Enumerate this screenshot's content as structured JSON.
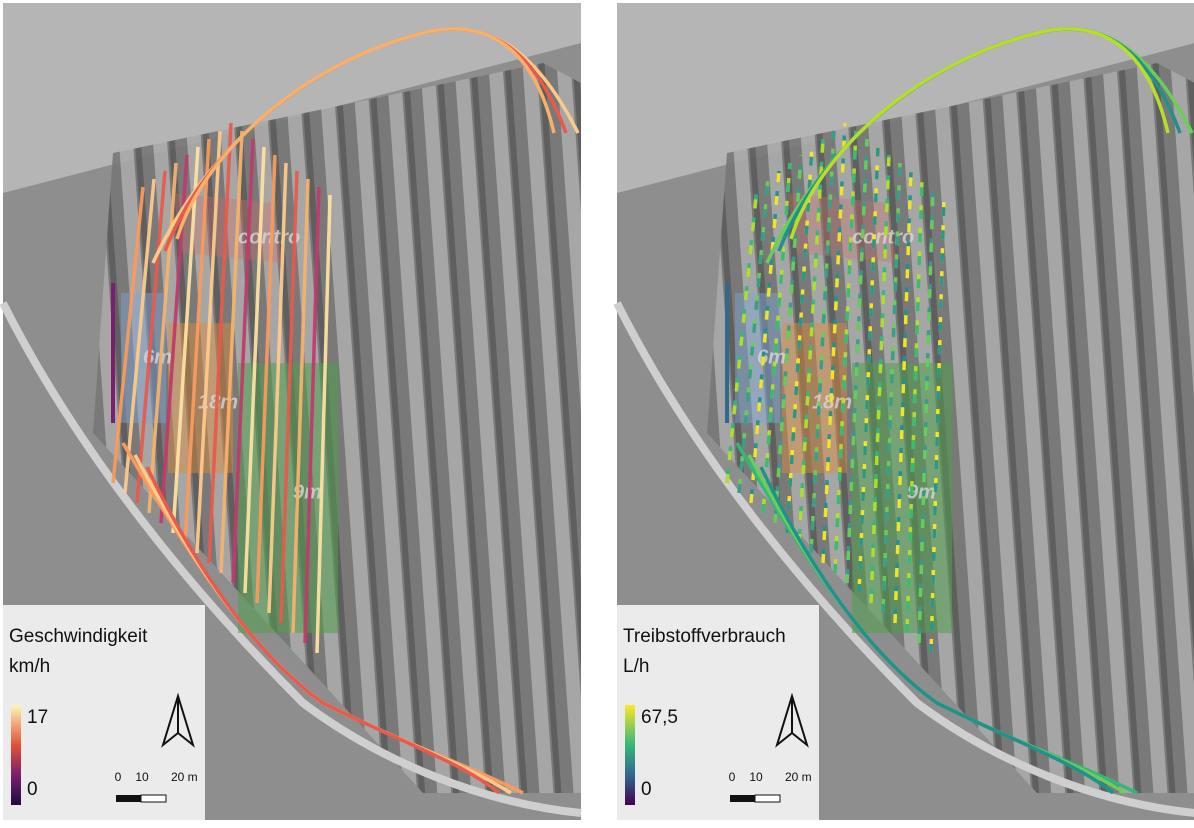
{
  "panels": [
    {
      "zones": [
        "6m",
        "18m",
        "9m",
        "contro"
      ],
      "legend": {
        "title": "Geschwindigkeit",
        "unit": "km/h",
        "max": "17",
        "min": "0"
      },
      "scale": [
        "0",
        "10",
        "20 m"
      ]
    },
    {
      "zones": [
        "6m",
        "18m",
        "9m",
        "contro"
      ],
      "legend": {
        "title": "Treibstoffverbrauch",
        "unit": "L/h",
        "max": "67,5",
        "min": "0"
      },
      "scale": [
        "0",
        "10",
        "20 m"
      ]
    }
  ]
}
